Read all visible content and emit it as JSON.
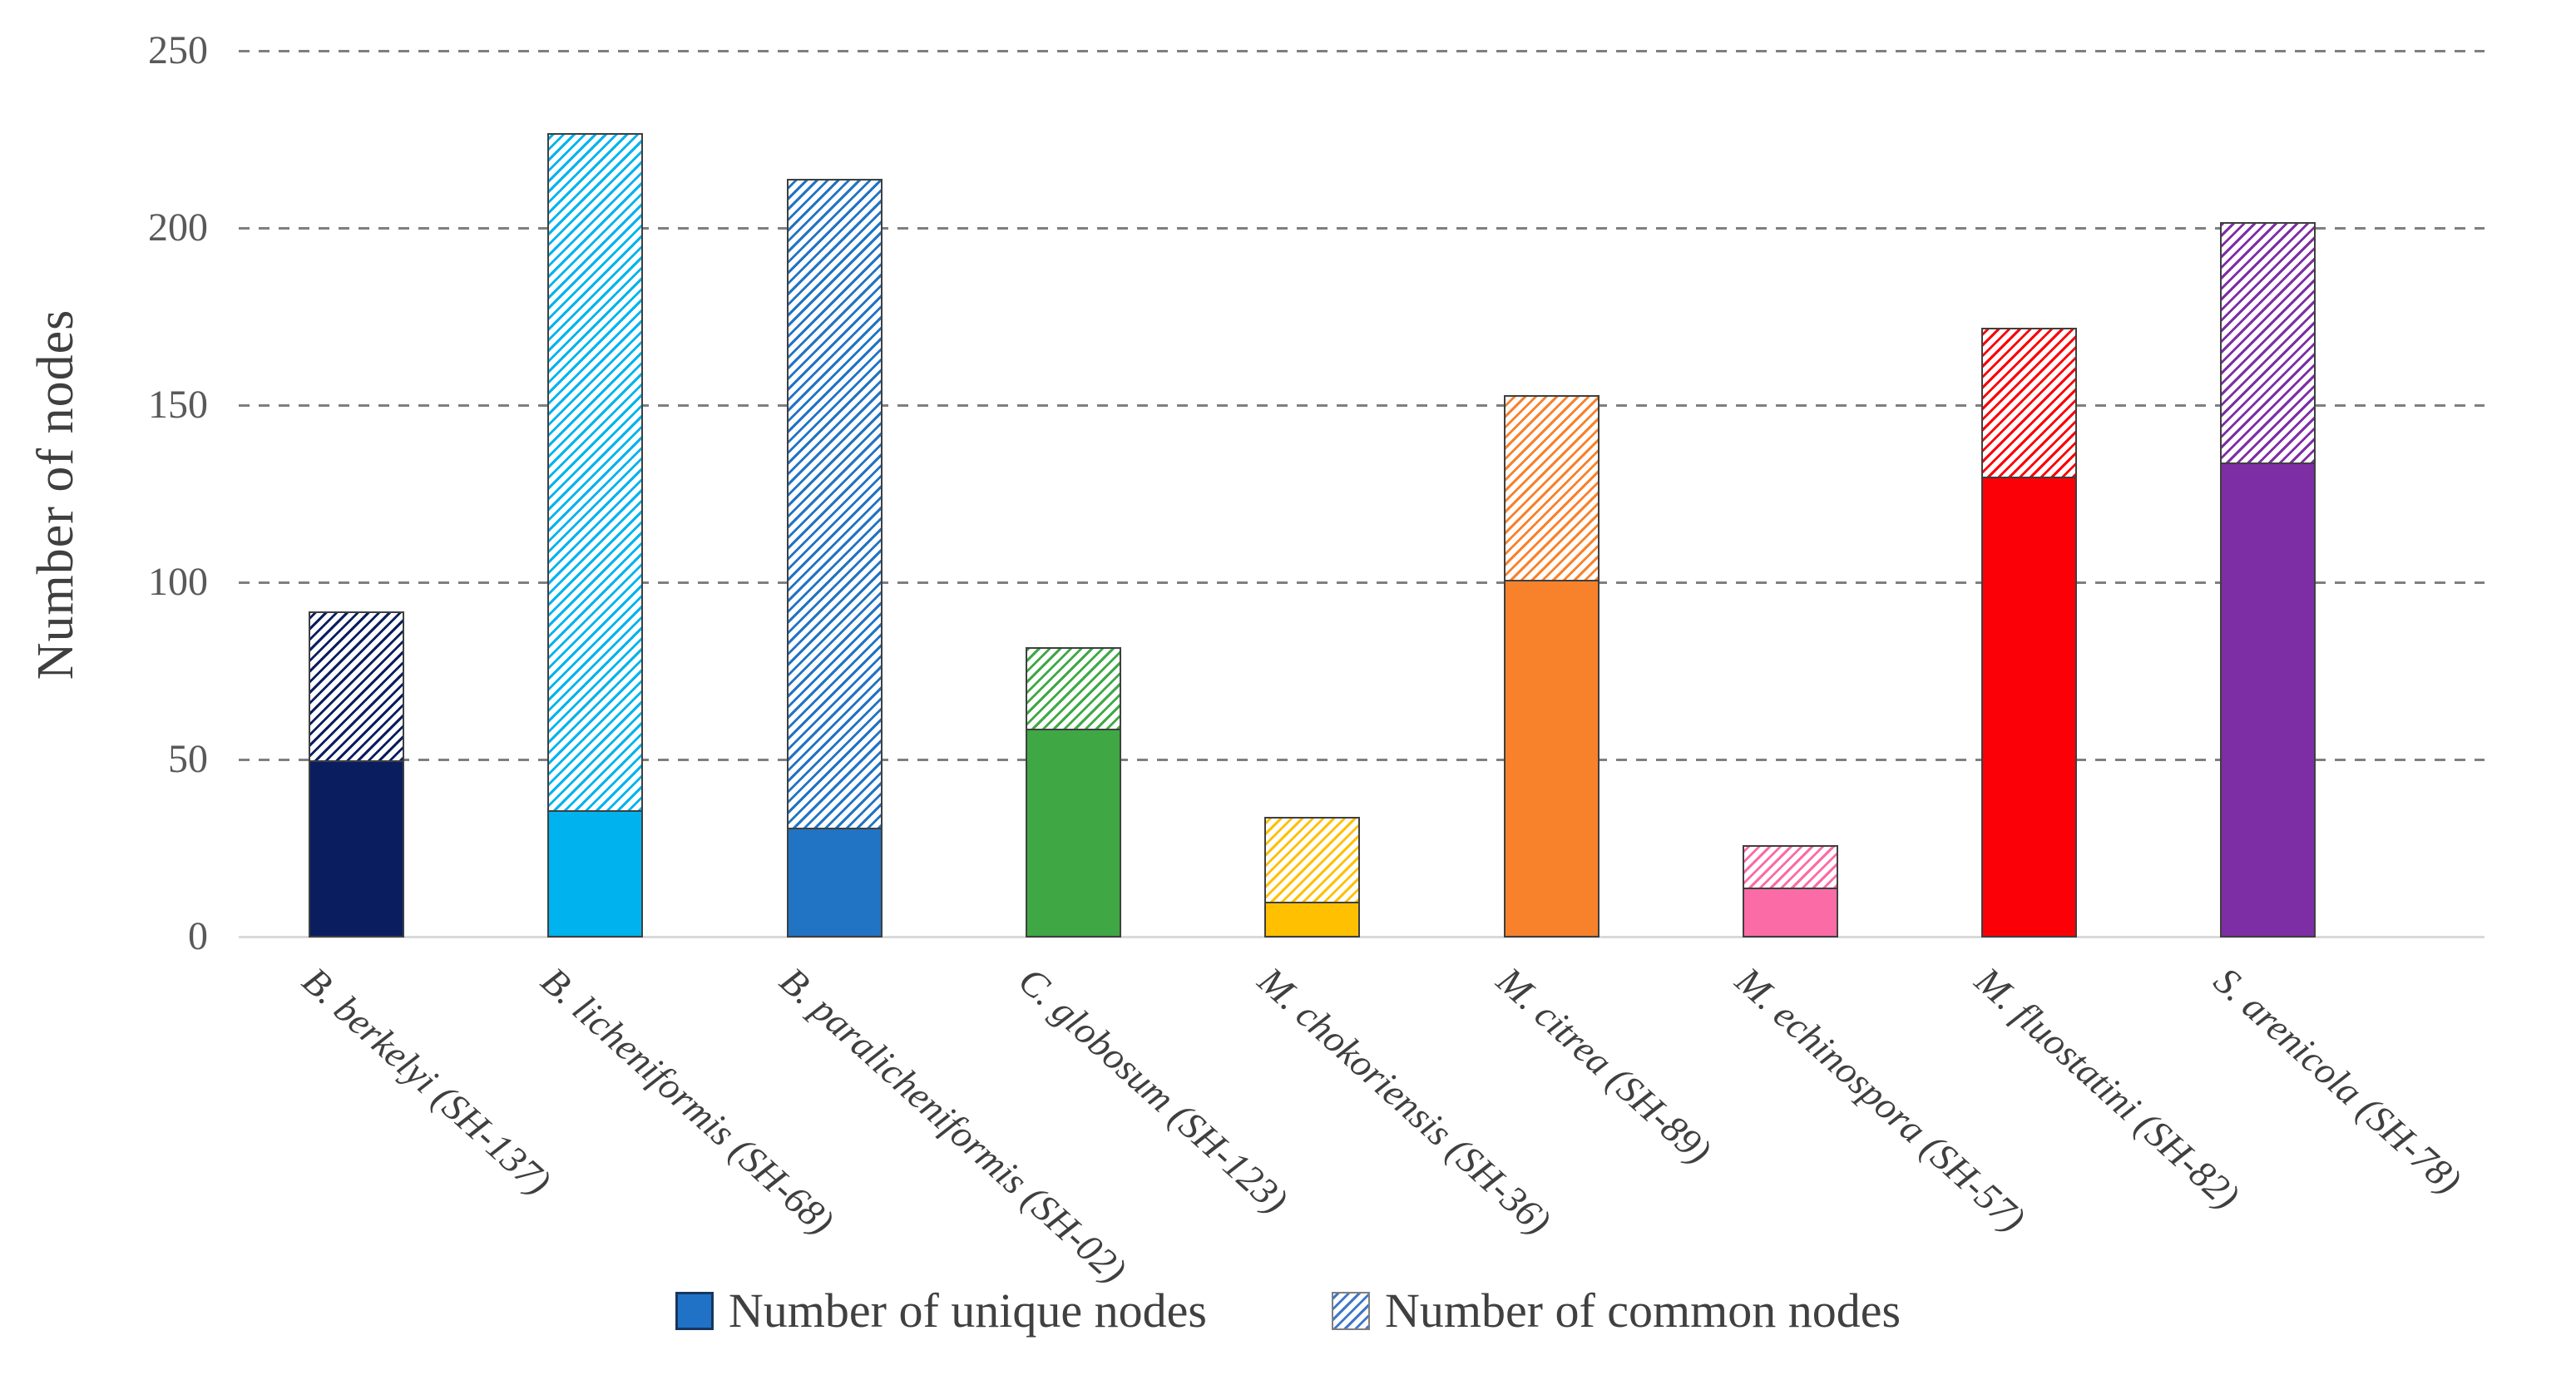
{
  "y_axis": {
    "title": "Number of nodes",
    "ticks": [
      0,
      50,
      100,
      150,
      200,
      250
    ]
  },
  "legend": {
    "unique_label": "Number of unique nodes",
    "common_label": "Number of common nodes"
  },
  "colors": {
    "grid": "#7F7F7F",
    "zero_line": "#D9D9D9",
    "tick_text": "#595959",
    "axis_title_text": "#3F3F3F",
    "x_label_text": "#3F3F3F",
    "bar_border": "#3F3F3F",
    "legend_solid_fill": "#1F72C6",
    "legend_solid_border": "#17365D",
    "legend_hatch_line": "#3E78C8",
    "legend_hatch_border": "#7F7F7F"
  },
  "chart_data": {
    "type": "bar",
    "stacked": true,
    "title": "",
    "xlabel": "",
    "ylabel": "Number of nodes",
    "ylim": [
      0,
      250
    ],
    "grid": "horizontal dashed at every 50",
    "legend_position": "bottom center",
    "categories": [
      "B. berkelyi (SH-137)",
      "B. licheniformis (SH-68)",
      "B. paralicheniformis (SH-02)",
      "C. globosum (SH-123)",
      "M. chokoriensis (SH-36)",
      "M. citrea (SH-89)",
      "M. echinospora (SH-57)",
      "M. fluostatini (SH-82)",
      "S. arenicola (SH-78)"
    ],
    "bar_colors": [
      "#0A1E5F",
      "#00B3EE",
      "#2173C4",
      "#3FA845",
      "#FFC002",
      "#F8812B",
      "#FB6BA5",
      "#FB0007",
      "#7D2EA5"
    ],
    "series": [
      {
        "name": "Number of unique nodes",
        "style": "solid",
        "values": [
          50,
          36,
          31,
          59,
          10,
          101,
          14,
          130,
          134
        ]
      },
      {
        "name": "Number of common nodes",
        "style": "hatched",
        "values": [
          42,
          191,
          183,
          23,
          24,
          52,
          12,
          42,
          68
        ]
      }
    ],
    "stack_totals": [
      92,
      227,
      214,
      82,
      34,
      153,
      26,
      172,
      202
    ]
  }
}
